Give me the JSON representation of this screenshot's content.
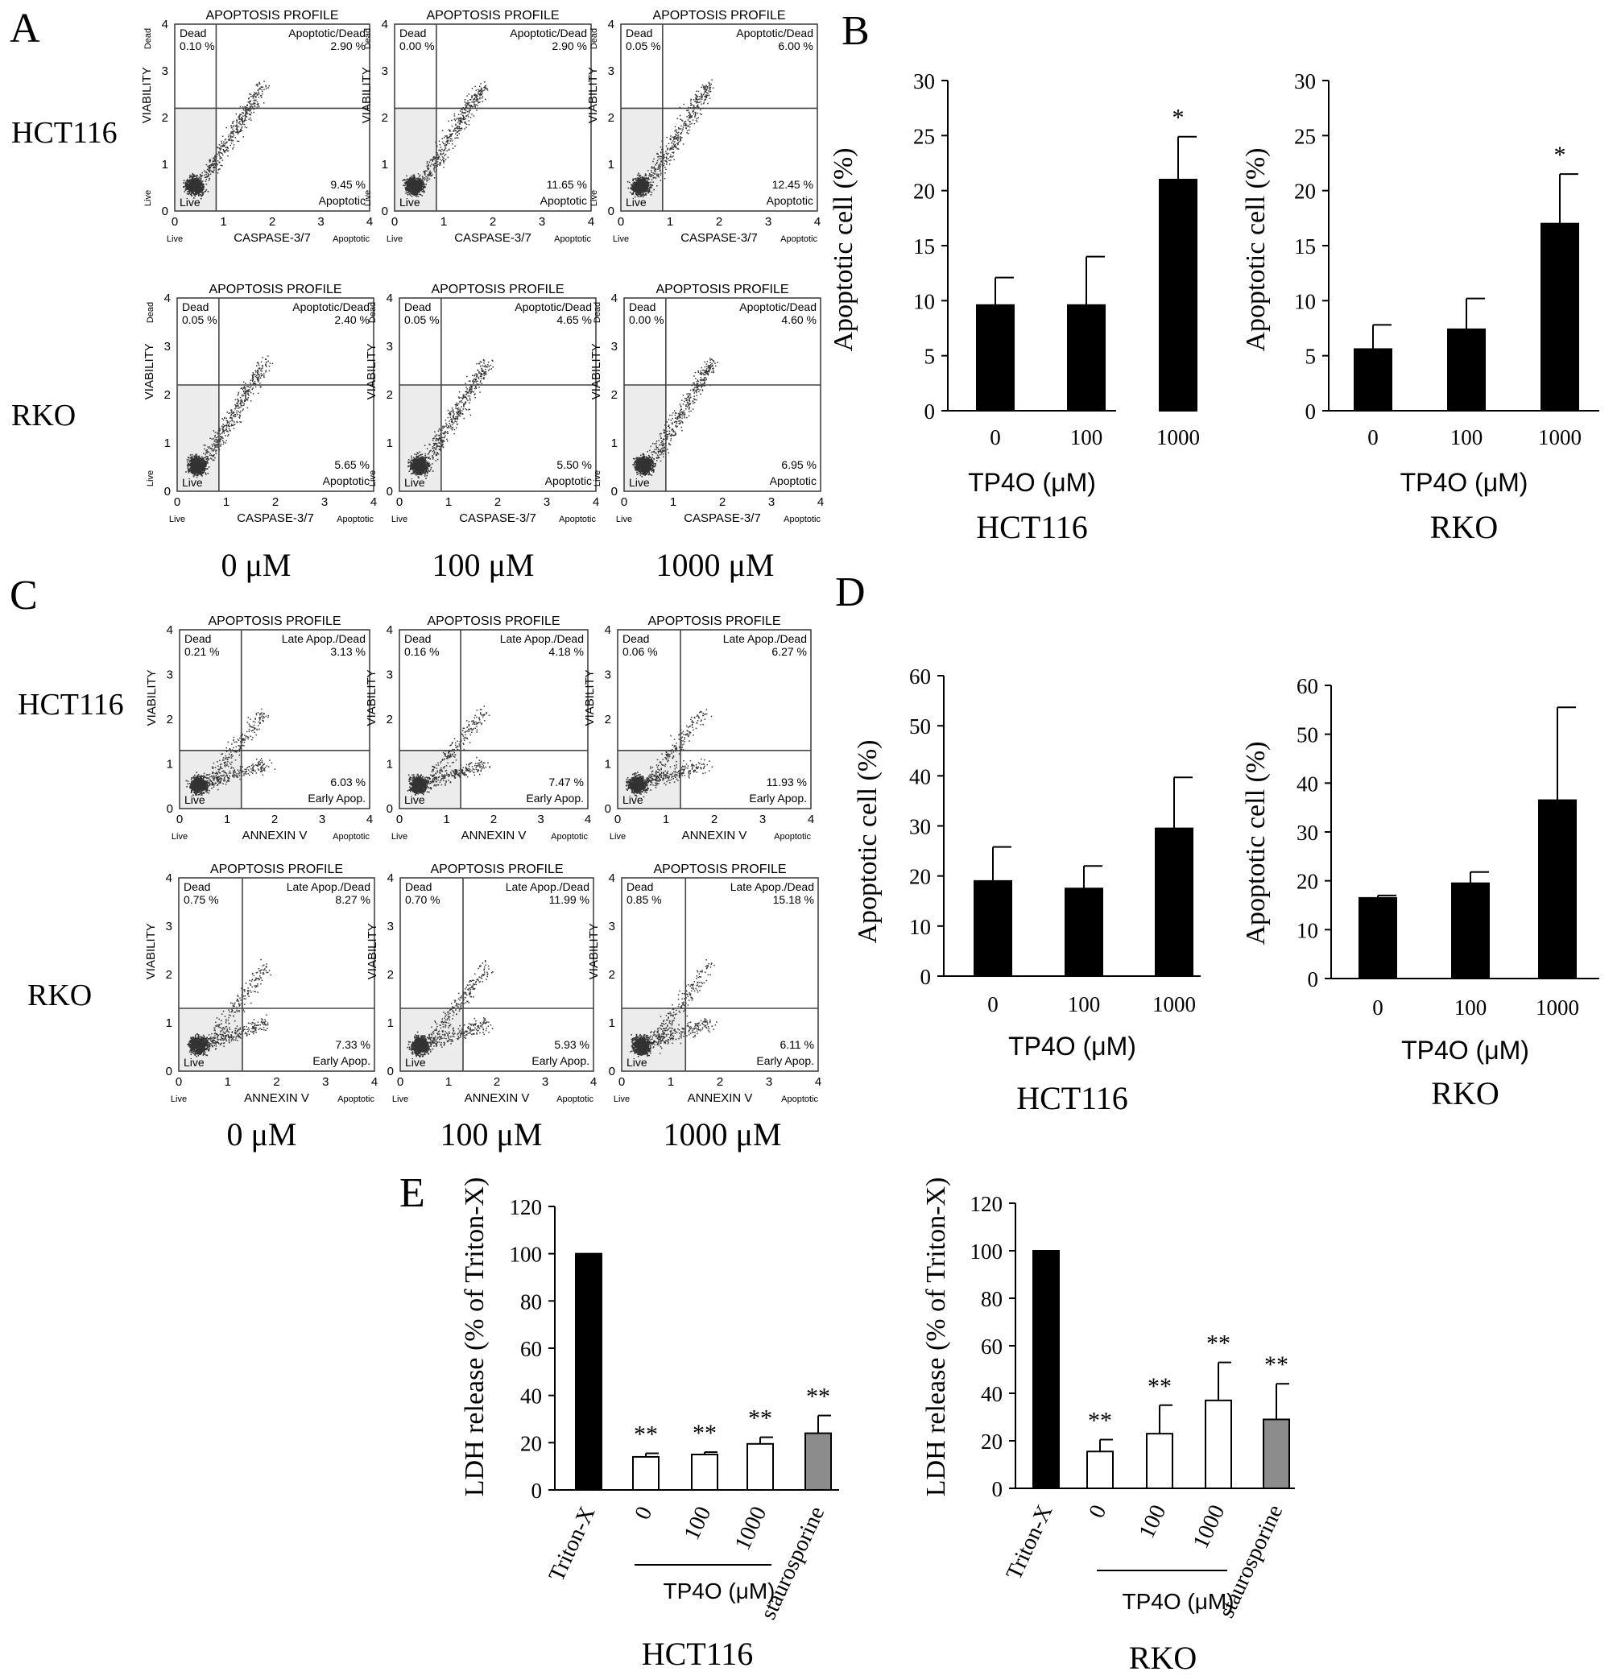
{
  "figure": {
    "panel_labels": [
      "A",
      "B",
      "C",
      "D",
      "E"
    ],
    "colors": {
      "black": "#000000",
      "white": "#ffffff",
      "gray": "#8c8c8c",
      "quadrant_shade": "#ececec",
      "dots": "#333333"
    }
  },
  "panel_A": {
    "plot_title": "APOPTOSIS PROFILE",
    "y_axis_label": "VIABILITY",
    "y_top_label": "Dead",
    "y_bottom_label": "Live",
    "x_axis_label": "CASPASE-3/7",
    "x_left_label": "Live",
    "x_right_label": "Apoptotic",
    "ticks": [
      "0",
      "1",
      "2",
      "3",
      "4"
    ],
    "row_labels": [
      "HCT116",
      "RKO"
    ],
    "conc_labels": [
      "0 μM",
      "100 μM",
      "1000 μM"
    ],
    "quadrant_names": {
      "tl": "Dead",
      "tr": "Apoptotic/Dead",
      "br": "Apoptotic",
      "bl": "Live"
    },
    "gates": {
      "x": 0.85,
      "y": 2.2
    },
    "plots": [
      {
        "tl": "0.10 %",
        "tr": "2.90 %",
        "br": "9.45 %"
      },
      {
        "tl": "0.00 %",
        "tr": "2.90 %",
        "br": "11.65 %"
      },
      {
        "tl": "0.05 %",
        "tr": "6.00 %",
        "br": "12.45 %"
      },
      {
        "tl": "0.05 %",
        "tr": "2.40 %",
        "br": "5.65 %"
      },
      {
        "tl": "0.05 %",
        "tr": "4.65 %",
        "br": "5.50 %"
      },
      {
        "tl": "0.00 %",
        "tr": "4.60 %",
        "br": "6.95 %"
      }
    ]
  },
  "panel_C": {
    "plot_title": "APOPTOSIS PROFILE",
    "y_axis_label": "VIABILITY",
    "x_axis_label": "ANNEXIN V",
    "x_left_label": "Live",
    "x_right_label": "Apoptotic",
    "ticks": [
      "0",
      "1",
      "2",
      "3",
      "4"
    ],
    "row_labels": [
      "HCT116",
      "RKO"
    ],
    "conc_labels": [
      "0 μM",
      "100 μM",
      "1000 μM"
    ],
    "quadrant_names": {
      "tl": "Dead",
      "tr": "Late Apop./Dead",
      "br": "Early Apop.",
      "bl": "Live"
    },
    "gates": {
      "x": 1.3,
      "y": 1.3
    },
    "plots": [
      {
        "tl": "0.21 %",
        "tr": "3.13 %",
        "br": "6.03 %"
      },
      {
        "tl": "0.16 %",
        "tr": "4.18 %",
        "br": "7.47 %"
      },
      {
        "tl": "0.06 %",
        "tr": "6.27 %",
        "br": "11.93 %"
      },
      {
        "tl": "0.75 %",
        "tr": "8.27 %",
        "br": "7.33 %"
      },
      {
        "tl": "0.70 %",
        "tr": "11.99 %",
        "br": "5.93 %"
      },
      {
        "tl": "0.85 %",
        "tr": "15.18 %",
        "br": "6.11 %"
      }
    ]
  },
  "chart_data": [
    {
      "panel": "B",
      "type": "bar",
      "cell_line": "HCT116",
      "categories": [
        "0",
        "100",
        "1000"
      ],
      "values": [
        9.6,
        9.6,
        21.0
      ],
      "errors": [
        2.5,
        4.4,
        3.9
      ],
      "significance": [
        "",
        "",
        "*"
      ],
      "xlabel": "TP4O (μM)",
      "ylabel": "Apoptotic cell (%)",
      "ylim": [
        0,
        30
      ],
      "yticks": [
        "0",
        "5",
        "10",
        "15",
        "20",
        "25",
        "30"
      ]
    },
    {
      "panel": "B",
      "type": "bar",
      "cell_line": "RKO",
      "categories": [
        "0",
        "100",
        "1000"
      ],
      "values": [
        5.6,
        7.4,
        17.0
      ],
      "errors": [
        2.2,
        2.8,
        4.5
      ],
      "significance": [
        "",
        "",
        "*"
      ],
      "xlabel": "TP4O (μM)",
      "ylabel": "Apoptotic cell (%)",
      "ylim": [
        0,
        30
      ],
      "yticks": [
        "0",
        "5",
        "10",
        "15",
        "20",
        "25",
        "30"
      ]
    },
    {
      "panel": "D",
      "type": "bar",
      "cell_line": "HCT116",
      "categories": [
        "0",
        "100",
        "1000"
      ],
      "values": [
        19.0,
        17.5,
        29.5
      ],
      "errors": [
        6.8,
        4.5,
        10.2
      ],
      "significance": [
        "",
        "",
        ""
      ],
      "xlabel": "TP4O (μM)",
      "ylabel": "Apoptotic cell (%)",
      "ylim": [
        0,
        60
      ],
      "yticks": [
        "0",
        "10",
        "20",
        "30",
        "40",
        "50",
        "60"
      ]
    },
    {
      "panel": "D",
      "type": "bar",
      "cell_line": "RKO",
      "categories": [
        "0",
        "100",
        "1000"
      ],
      "values": [
        16.5,
        19.5,
        36.5
      ],
      "errors": [
        0.5,
        2.3,
        19.0
      ],
      "significance": [
        "",
        "",
        ""
      ],
      "xlabel": "TP4O (μM)",
      "ylabel": "Apoptotic cell (%)",
      "ylim": [
        0,
        60
      ],
      "yticks": [
        "0",
        "10",
        "20",
        "30",
        "40",
        "50",
        "60"
      ]
    },
    {
      "panel": "E",
      "type": "bar",
      "cell_line": "HCT116",
      "categories": [
        "Triton-X",
        "0",
        "100",
        "1000",
        "staurosporine"
      ],
      "values": [
        100,
        14,
        15,
        19.5,
        24
      ],
      "errors": [
        0,
        1.5,
        1.0,
        2.8,
        7.5
      ],
      "significance": [
        "",
        "**",
        "**",
        "**",
        "**"
      ],
      "fills": [
        "black",
        "white",
        "white",
        "white",
        "gray"
      ],
      "group_label": "TP4O (μM)",
      "ylabel": "LDH release (% of Triton-X)",
      "ylim": [
        0,
        120
      ],
      "yticks": [
        "0",
        "20",
        "40",
        "60",
        "80",
        "100",
        "120"
      ]
    },
    {
      "panel": "E",
      "type": "bar",
      "cell_line": "RKO",
      "categories": [
        "Triton-X",
        "0",
        "100",
        "1000",
        "staurosporine"
      ],
      "values": [
        100,
        15.5,
        23,
        37,
        29
      ],
      "errors": [
        0,
        5.0,
        12.0,
        16.0,
        15.0
      ],
      "significance": [
        "",
        "**",
        "**",
        "**",
        "**"
      ],
      "fills": [
        "black",
        "white",
        "white",
        "white",
        "gray"
      ],
      "group_label": "TP4O (μM)",
      "ylabel": "LDH release (% of Triton-X)",
      "ylim": [
        0,
        120
      ],
      "yticks": [
        "0",
        "20",
        "40",
        "60",
        "80",
        "100",
        "120"
      ]
    }
  ]
}
